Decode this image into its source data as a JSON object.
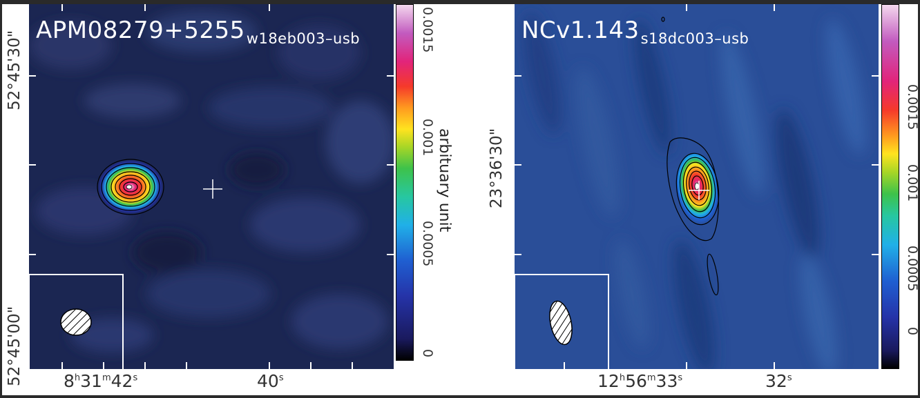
{
  "left_panel": {
    "title": "APM08279+5255",
    "subtitle": "w18eb003–usb",
    "dec_ticks": [
      "52°45'30\"",
      "52°45'00\""
    ],
    "ra_ticks": [
      {
        "h": "8",
        "m": "31",
        "s": "42"
      },
      {
        "s": "40"
      }
    ],
    "colorbar_ticks": [
      "0.0015",
      "0.001",
      "0.0005",
      "0"
    ],
    "colorbar_title": "arbituary unit"
  },
  "right_panel": {
    "title": "NCv1.143",
    "subtitle": "s18dc003–usb",
    "dec_ticks": [
      "23°36'30\""
    ],
    "ra_ticks": [
      {
        "h": "12",
        "m": "56",
        "s": "33"
      },
      {
        "s": "32"
      }
    ],
    "colorbar_ticks": [
      "0.0015",
      "0.001",
      "0.0005",
      "0"
    ]
  },
  "colors": {
    "map_background": "#1b2652",
    "right_map_background": "#2a4e98",
    "colormap": [
      "#000000",
      "#1a1a5e",
      "#2533a8",
      "#1f5fd1",
      "#20b0e8",
      "#27c7a0",
      "#3ec24a",
      "#a8d626",
      "#ffe31f",
      "#ff9a1f",
      "#f53a2a",
      "#e2247a",
      "#c25bbf",
      "#f4d8ee"
    ]
  },
  "icons": [
    "beam-ellipse-icon",
    "crosshair-icon"
  ]
}
